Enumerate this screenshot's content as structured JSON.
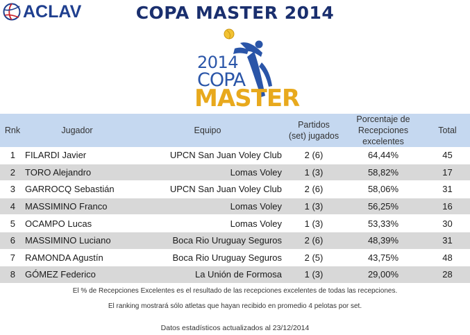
{
  "header": {
    "brand": "ACLAV",
    "title": "COPA MASTER 2014"
  },
  "event_logo": {
    "year": "2014",
    "line1": "COPA",
    "line2": "MASTER",
    "primary_color": "#2a55a8",
    "accent_color": "#e8a91d"
  },
  "table": {
    "headers": {
      "rank": "Rnk",
      "player": "Jugador",
      "team": "Equipo",
      "matches_line1": "Partidos",
      "matches_line2": "(set) jugados",
      "pct_line1": "Porcentaje de",
      "pct_line2": "Recepciones excelentes",
      "total": "Total"
    },
    "header_color": "#c5d8f0",
    "alt_row_color": "#d8d8d8",
    "rows": [
      {
        "rank": "1",
        "player": "FILARDI Javier",
        "team": "UPCN San Juan Voley Club",
        "matches": "2 (6)",
        "pct": "64,44%",
        "total": "45"
      },
      {
        "rank": "2",
        "player": "TORO Alejandro",
        "team": "Lomas Voley",
        "matches": "1 (3)",
        "pct": "58,82%",
        "total": "17"
      },
      {
        "rank": "3",
        "player": "GARROCQ Sebastián",
        "team": "UPCN San Juan Voley Club",
        "matches": "2 (6)",
        "pct": "58,06%",
        "total": "31"
      },
      {
        "rank": "4",
        "player": "MASSIMINO Franco",
        "team": "Lomas Voley",
        "matches": "1 (3)",
        "pct": "56,25%",
        "total": "16"
      },
      {
        "rank": "5",
        "player": "OCAMPO Lucas",
        "team": "Lomas Voley",
        "matches": "1 (3)",
        "pct": "53,33%",
        "total": "30"
      },
      {
        "rank": "6",
        "player": "MASSIMINO Luciano",
        "team": "Boca Rio Uruguay Seguros",
        "matches": "2 (6)",
        "pct": "48,39%",
        "total": "31"
      },
      {
        "rank": "7",
        "player": "RAMONDA Agustín",
        "team": "Boca Rio Uruguay Seguros",
        "matches": "2 (5)",
        "pct": "43,75%",
        "total": "48"
      },
      {
        "rank": "8",
        "player": "GÓMEZ Federico",
        "team": "La Unión de Formosa",
        "matches": "1 (3)",
        "pct": "29,00%",
        "total": "28"
      }
    ]
  },
  "notes": {
    "line1": "El % de Recepciones Excelentes es el resultado de las recepciones excelentes de todas las recepciones.",
    "line2": "El ranking mostrará sólo atletas que hayan recibido en promedio 4 pelotas por set.",
    "line3": "Datos estadísticos actualizados al 23/12/2014"
  }
}
